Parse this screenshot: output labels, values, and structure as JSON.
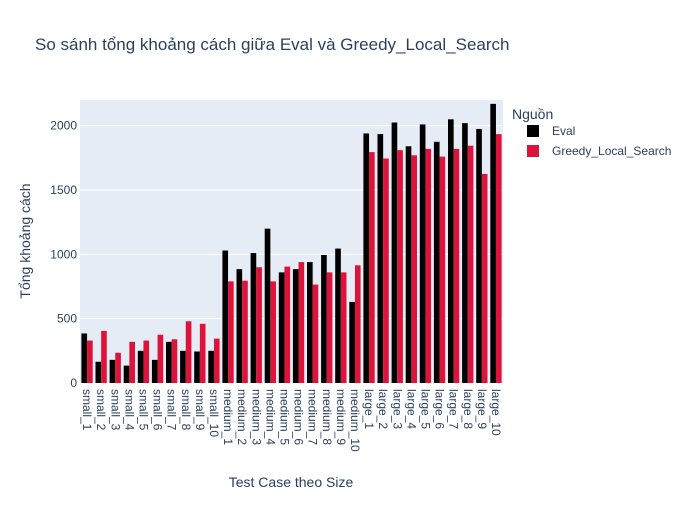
{
  "chart_data": {
    "type": "bar",
    "title": "So sánh tổng khoảng cách giữa Eval và Greedy_Local_Search",
    "xlabel": "Test Case theo Size",
    "ylabel": "Tổng khoảng cách",
    "ylim": [
      0,
      2200
    ],
    "yticks": [
      0,
      500,
      1000,
      1500,
      2000
    ],
    "grid": true,
    "legend_title": "Nguồn",
    "legend_position": "top-right",
    "categories": [
      "small_1",
      "small_2",
      "small_3",
      "small_4",
      "small_5",
      "small_6",
      "small_7",
      "small_8",
      "small_9",
      "small_10",
      "medium_1",
      "medium_2",
      "medium_3",
      "medium_4",
      "medium_5",
      "medium_6",
      "medium_7",
      "medium_8",
      "medium_9",
      "medium_10",
      "large_1",
      "large_2",
      "large_3",
      "large_4",
      "large_5",
      "large_6",
      "large_7",
      "large_8",
      "large_9",
      "large_10"
    ],
    "series": [
      {
        "name": "Eval",
        "color": "#000000",
        "values": [
          385,
          165,
          180,
          135,
          250,
          180,
          320,
          250,
          245,
          250,
          1030,
          885,
          1010,
          1200,
          860,
          885,
          940,
          995,
          1045,
          630,
          1940,
          1935,
          2025,
          1840,
          2010,
          1875,
          2050,
          2020,
          1975,
          2170
        ]
      },
      {
        "name": "Greedy_Local_Search",
        "color": "#dc143c",
        "values": [
          330,
          405,
          235,
          320,
          330,
          375,
          340,
          480,
          460,
          345,
          790,
          795,
          900,
          790,
          905,
          940,
          765,
          860,
          860,
          915,
          1795,
          1745,
          1810,
          1770,
          1820,
          1760,
          1820,
          1845,
          1625,
          1935
        ]
      }
    ]
  },
  "colors": {
    "plot_bg": "#e5ecf6",
    "grid": "#ffffff",
    "text": "#2a3f5f"
  }
}
